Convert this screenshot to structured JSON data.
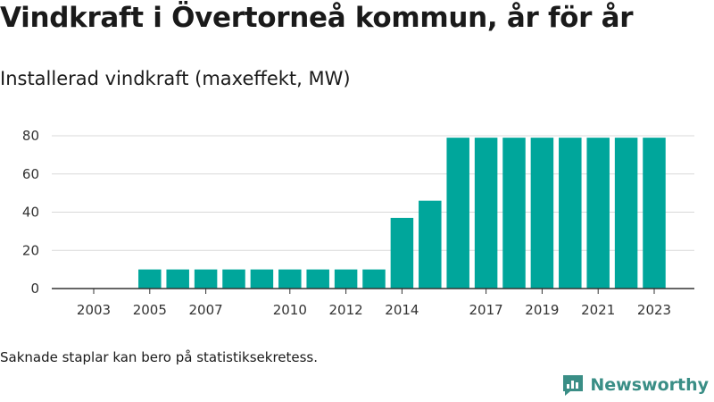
{
  "title": "Vindkraft i Övertorneå kommun, år för år",
  "subtitle": "Installerad vindkraft (maxeffekt, MW)",
  "note": "Saknade staplar kan bero på statistiksekretess.",
  "brand": {
    "name": "Newsworthy",
    "color": "#3a8e86"
  },
  "colors": {
    "bar": "#00a69b",
    "grid": "#d9d9d9",
    "axis": "#333333"
  },
  "chart_data": {
    "type": "bar",
    "title": "Installerad vindkraft (maxeffekt, MW)",
    "xlabel": "",
    "ylabel": "",
    "categories": [
      2003,
      2004,
      2005,
      2006,
      2007,
      2008,
      2009,
      2010,
      2011,
      2012,
      2013,
      2014,
      2015,
      2016,
      2017,
      2018,
      2019,
      2020,
      2021,
      2022,
      2023
    ],
    "values": [
      null,
      null,
      10,
      10,
      10,
      10,
      10,
      10,
      10,
      10,
      10,
      37,
      46,
      79,
      79,
      79,
      79,
      79,
      79,
      79,
      79
    ],
    "x_tick_labels": [
      "2003",
      "2005",
      "2007",
      "2010",
      "2012",
      "2014",
      "2017",
      "2019",
      "2021",
      "2023"
    ],
    "y_ticks": [
      0,
      20,
      40,
      60,
      80
    ],
    "ylim": [
      0,
      80
    ],
    "grid": true,
    "legend": false
  }
}
